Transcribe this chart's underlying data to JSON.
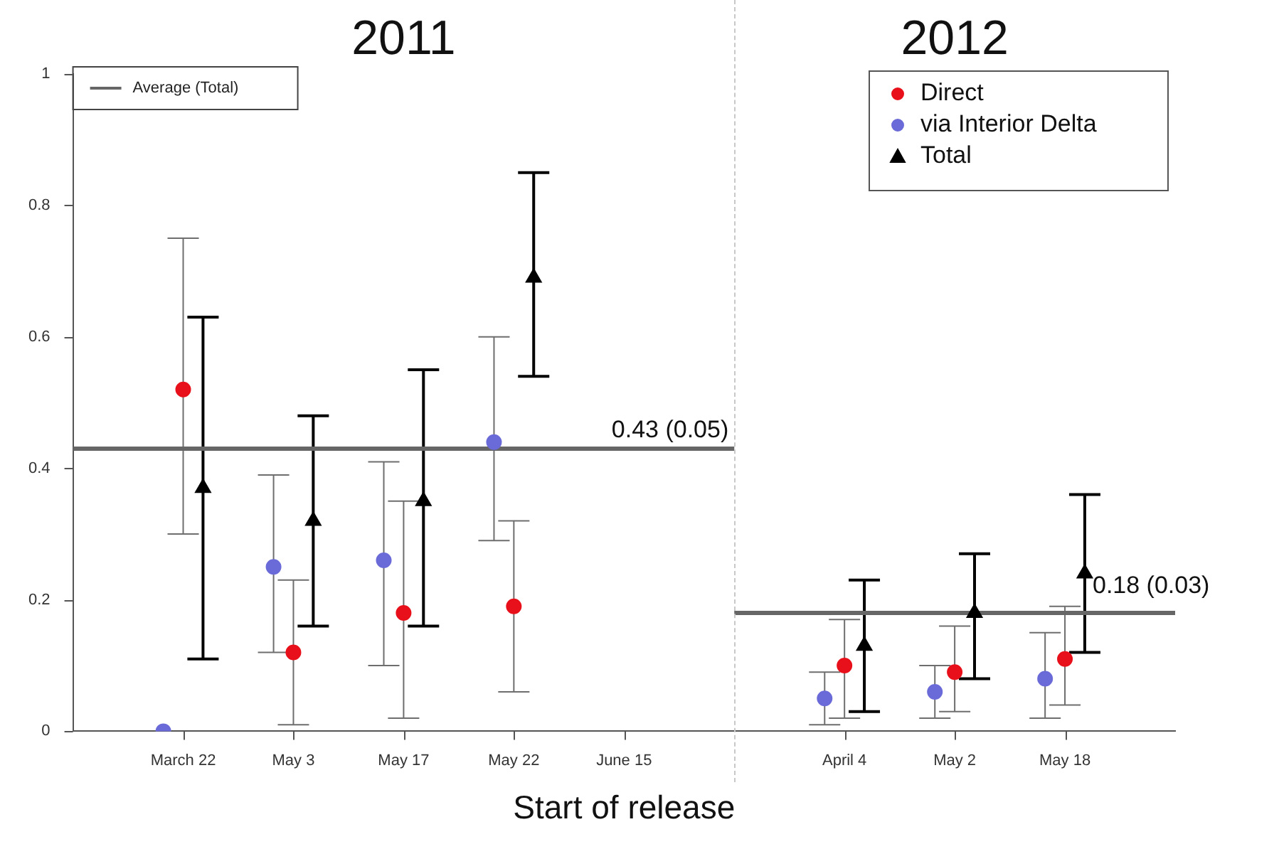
{
  "chart_data": {
    "type": "scatter",
    "xlabel": "Start of release",
    "annotations": [
      "2011",
      "2012",
      "0.43 (0.05)",
      "0.18 (0.03)"
    ],
    "categories": [
      null,
      "March 22",
      "May 3",
      "May 17",
      "May 22",
      "June 15",
      null,
      "April 4",
      "May 2",
      "May 18",
      null
    ],
    "ylim": [
      0,
      1
    ],
    "yticks": [
      0,
      0.2,
      0.4,
      0.6,
      0.8,
      1
    ],
    "legend": "top right",
    "series": [
      {
        "name": "Direct",
        "color": "#e8101a",
        "marker": "circle",
        "values": [
          null,
          0.52,
          0.12,
          0.18,
          0.19,
          null,
          null,
          0.1,
          0.09,
          0.11,
          null
        ],
        "errors": [
          null,
          [
            0.3,
            0.75
          ],
          [
            0.01,
            0.23
          ],
          [
            0.02,
            0.35
          ],
          [
            0.06,
            0.32
          ],
          null,
          null,
          [
            0.02,
            0.17
          ],
          [
            0.03,
            0.16
          ],
          [
            0.04,
            0.19
          ],
          null
        ]
      },
      {
        "name": "via Interior Delta",
        "color": "#6a6ad8",
        "marker": "circle",
        "values": [
          null,
          0,
          0.25,
          0.26,
          0.44,
          null,
          null,
          0.05,
          0.06,
          0.08,
          null
        ],
        "errors": [
          null,
          null,
          [
            0.12,
            0.39
          ],
          [
            0.1,
            0.41
          ],
          [
            0.29,
            0.6
          ],
          null,
          null,
          [
            0.01,
            0.09
          ],
          [
            0.02,
            0.1
          ],
          [
            0.02,
            0.15
          ],
          null
        ]
      },
      {
        "name": "Total",
        "color": "#000000",
        "marker": "triangle",
        "values": [
          null,
          0.37,
          0.32,
          0.35,
          0.69,
          null,
          null,
          0.13,
          0.18,
          0.24,
          null
        ],
        "errors": [
          null,
          [
            0.11,
            0.63
          ],
          [
            0.16,
            0.48
          ],
          [
            0.16,
            0.55
          ],
          [
            0.54,
            0.85
          ],
          null,
          null,
          [
            0.03,
            0.23
          ],
          [
            0.08,
            0.27
          ],
          [
            0.12,
            0.36
          ],
          null
        ]
      },
      {
        "name": "Average (Total)",
        "type": "line",
        "color": "#666666",
        "marker": "none",
        "values": [
          0.43,
          0.43,
          0.43,
          0.43,
          0.43,
          0.43,
          0.43,
          null,
          null,
          null,
          null
        ]
      },
      {
        "type": "line",
        "color": "#666666",
        "marker": "none",
        "values": [
          null,
          null,
          null,
          null,
          null,
          null,
          0.18,
          0.18,
          0.18,
          0.18,
          0.18
        ]
      }
    ]
  }
}
